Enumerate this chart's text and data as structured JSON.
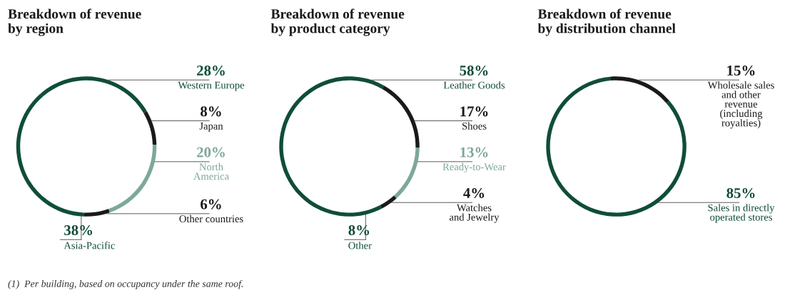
{
  "chart_data": [
    {
      "type": "donut",
      "title": "Breakdown of revenue\nby region",
      "categories": [
        "Western Europe",
        "Japan",
        "North\nAmerica",
        "Other countries",
        "Asia-Pacific"
      ],
      "values": [
        28,
        8,
        20,
        6,
        38
      ],
      "value_labels": [
        "28%",
        "8%",
        "20%",
        "6%",
        "38%"
      ],
      "colors": [
        "#0f4d3a",
        "#1a1a1a",
        "#7da898",
        "#1a1a1a",
        "#0f4d3a"
      ]
    },
    {
      "type": "donut",
      "title": "Breakdown of revenue\nby product category",
      "categories": [
        "Leather Goods",
        "Shoes",
        "Ready-to-Wear",
        "Watches\nand Jewelry",
        "Other"
      ],
      "values": [
        58,
        17,
        13,
        4,
        8
      ],
      "value_labels": [
        "58%",
        "17%",
        "13%",
        "4%",
        "8%"
      ],
      "colors": [
        "#0f4d3a",
        "#1a1a1a",
        "#7da898",
        "#1a1a1a",
        "#0f4d3a"
      ]
    },
    {
      "type": "donut",
      "title": "Breakdown of revenue\nby distribution channel",
      "categories": [
        "Wholesale sales\nand other\nrevenue\n(including\nroyalties)",
        "Sales in directly\noperated stores"
      ],
      "values": [
        15,
        85
      ],
      "value_labels": [
        "15%",
        "85%"
      ],
      "colors": [
        "#1a1a1a",
        "#0f4d3a"
      ],
      "annotations": [
        "(1)  Per building, based on occupancy under the same roof."
      ]
    }
  ]
}
